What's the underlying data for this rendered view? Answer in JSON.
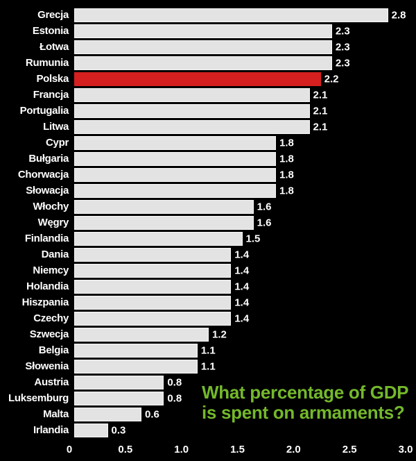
{
  "chart_data": {
    "type": "bar",
    "orientation": "horizontal",
    "title": "",
    "xlabel": "",
    "ylabel": "",
    "grid": false,
    "background_color": "#000000",
    "text_color": "#ffffff",
    "bar_color": "#e3e3e3",
    "bar_border_color": "#f8f8f8",
    "highlight": {
      "category": "Polska",
      "color": "#d5201f"
    },
    "categories": [
      "Grecja",
      "Estonia",
      "Łotwa",
      "Rumunia",
      "Polska",
      "Francja",
      "Portugalia",
      "Litwa",
      "Cypr",
      "Bułgaria",
      "Chorwacja",
      "Słowacja",
      "Włochy",
      "Węgry",
      "Finlandia",
      "Dania",
      "Niemcy",
      "Holandia",
      "Hiszpania",
      "Czechy",
      "Szwecja",
      "Belgia",
      "Słowenia",
      "Austria",
      "Luksemburg",
      "Malta",
      "Irlandia"
    ],
    "values": [
      2.8,
      2.3,
      2.3,
      2.3,
      2.2,
      2.1,
      2.1,
      2.1,
      1.8,
      1.8,
      1.8,
      1.8,
      1.6,
      1.6,
      1.5,
      1.4,
      1.4,
      1.4,
      1.4,
      1.4,
      1.2,
      1.1,
      1.1,
      0.8,
      0.8,
      0.6,
      0.3
    ],
    "xlim": [
      0,
      3.0
    ],
    "x_tick_values": [
      0,
      0.5,
      1.0,
      1.5,
      2.0,
      2.5,
      3.0
    ],
    "x_ticks": [
      "0",
      "0.5",
      "1.0",
      "1.5",
      "2.0",
      "2.5",
      "3.0"
    ],
    "annotation": {
      "line1": "What percentage of GDP",
      "line2": "is spent on armaments?",
      "color": "#74b82b"
    }
  }
}
